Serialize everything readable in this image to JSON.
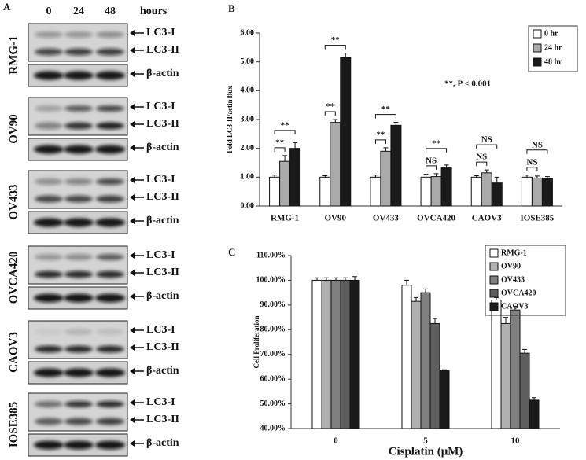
{
  "panel_a": {
    "label": "A",
    "lanes": [
      "0",
      "24",
      "48"
    ],
    "unit": "hours",
    "blots": [
      {
        "cell_line": "RMG-1",
        "bands": [
          "LC3-I",
          "LC3-II",
          "β-actin"
        ]
      },
      {
        "cell_line": "OV90",
        "bands": [
          "LC3-I",
          "LC3-II",
          "β-actin"
        ]
      },
      {
        "cell_line": "OV433",
        "bands": [
          "LC3-I",
          "LC3-II",
          "β-actin"
        ]
      },
      {
        "cell_line": "OVCA420",
        "bands": [
          "LC3-I",
          "LC3-II",
          "β-actin"
        ]
      },
      {
        "cell_line": "CAOV3",
        "bands": [
          "LC3-I",
          "LC3-II",
          "β-actin"
        ]
      },
      {
        "cell_line": "IOSE385",
        "bands": [
          "LC3-I",
          "LC3-II",
          "β-actin"
        ]
      }
    ]
  },
  "chart_data": [
    {
      "type": "bar",
      "panel_label": "B",
      "y_label": "Fold LC3-II/actin flux",
      "categories": [
        "RMG-1",
        "OV90",
        "OV433",
        "OVCA420",
        "CAOV3",
        "IOSE385"
      ],
      "series": [
        {
          "name": "0 hr",
          "color": "#ffffff",
          "values": [
            1.0,
            1.0,
            1.0,
            1.0,
            1.0,
            1.0
          ],
          "errors": [
            0.07,
            0.05,
            0.07,
            0.1,
            0.05,
            0.07
          ]
        },
        {
          "name": "24 hr",
          "color": "#aaaaaa",
          "values": [
            1.55,
            2.9,
            1.9,
            1.02,
            1.15,
            0.97
          ],
          "errors": [
            0.2,
            0.1,
            0.12,
            0.1,
            0.1,
            0.07
          ]
        },
        {
          "name": "48 hr",
          "color": "#1a1a1a",
          "values": [
            2.0,
            5.15,
            2.8,
            1.32,
            0.8,
            0.95
          ],
          "errors": [
            0.2,
            0.15,
            0.1,
            0.1,
            0.2,
            0.07
          ]
        }
      ],
      "ylim": [
        0,
        6
      ],
      "yticks": [
        {
          "value": 0,
          "label": "0.00"
        },
        {
          "value": 1,
          "label": "1.00"
        },
        {
          "value": 2,
          "label": "2.00"
        },
        {
          "value": 3,
          "label": "3.00"
        },
        {
          "value": 4,
          "label": "4.00"
        },
        {
          "value": 5,
          "label": "5.00"
        },
        {
          "value": 6,
          "label": "6.00"
        }
      ],
      "annotation": "**, P < 0.001",
      "significance": [
        {
          "category": "RMG-1",
          "pair": [
            "0 hr",
            "24 hr"
          ],
          "label": "**"
        },
        {
          "category": "RMG-1",
          "pair": [
            "0 hr",
            "48 hr"
          ],
          "label": "**"
        },
        {
          "category": "OV90",
          "pair": [
            "0 hr",
            "24 hr"
          ],
          "label": "**"
        },
        {
          "category": "OV90",
          "pair": [
            "0 hr",
            "48 hr"
          ],
          "label": "**"
        },
        {
          "category": "OV433",
          "pair": [
            "0 hr",
            "24 hr"
          ],
          "label": "**"
        },
        {
          "category": "OV433",
          "pair": [
            "0 hr",
            "48 hr"
          ],
          "label": "**"
        },
        {
          "category": "OVCA420",
          "pair": [
            "0 hr",
            "24 hr"
          ],
          "label": "NS"
        },
        {
          "category": "OVCA420",
          "pair": [
            "0 hr",
            "48 hr"
          ],
          "label": "**"
        },
        {
          "category": "CAOV3",
          "pair": [
            "0 hr",
            "24 hr"
          ],
          "label": "NS"
        },
        {
          "category": "CAOV3",
          "pair": [
            "0 hr",
            "48 hr"
          ],
          "label": "NS"
        },
        {
          "category": "IOSE385",
          "pair": [
            "0 hr",
            "24 hr"
          ],
          "label": "NS"
        },
        {
          "category": "IOSE385",
          "pair": [
            "0 hr",
            "48 hr"
          ],
          "label": "NS"
        }
      ],
      "legend": "upper right"
    },
    {
      "type": "bar",
      "panel_label": "C",
      "y_label": "Cell Proliferation",
      "x_label": "Cisplatin (μM)",
      "categories": [
        "0",
        "5",
        "10"
      ],
      "series": [
        {
          "name": "RMG-1",
          "color": "#ffffff",
          "values": [
            100,
            98,
            92
          ],
          "errors": [
            1,
            2,
            1
          ]
        },
        {
          "name": "OV90",
          "color": "#b0b0b0",
          "values": [
            100,
            91.5,
            82.5
          ],
          "errors": [
            1,
            1.5,
            2.5
          ]
        },
        {
          "name": "OV433",
          "color": "#808080",
          "values": [
            100,
            95,
            88
          ],
          "errors": [
            1,
            1.5,
            1.5
          ]
        },
        {
          "name": "OVCA420",
          "color": "#5e5e5e",
          "values": [
            100,
            82.5,
            70.5
          ],
          "errors": [
            1,
            2,
            1.5
          ]
        },
        {
          "name": "CAOV3",
          "color": "#1a1a1a",
          "values": [
            100,
            63.5,
            51.5
          ],
          "errors": [
            1.5,
            0.3,
            1
          ]
        }
      ],
      "ylim": [
        40,
        110
      ],
      "yticks": [
        {
          "value": 40,
          "label": "40.00%"
        },
        {
          "value": 50,
          "label": "50.00%"
        },
        {
          "value": 60,
          "label": "60.00%"
        },
        {
          "value": 70,
          "label": "70.00%"
        },
        {
          "value": 80,
          "label": "80.00%"
        },
        {
          "value": 90,
          "label": "90.00%"
        },
        {
          "value": 100,
          "label": "100.00%"
        },
        {
          "value": 110,
          "label": "110.00%"
        }
      ],
      "legend": "upper right"
    }
  ]
}
